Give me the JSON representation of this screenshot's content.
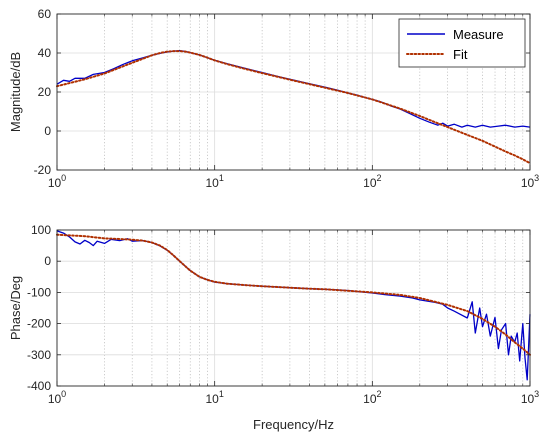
{
  "chart_data": [
    {
      "type": "line",
      "x_scale": "log",
      "xlim": [
        1,
        1000
      ],
      "ylim": [
        -20,
        60
      ],
      "yticks": [
        -20,
        0,
        20,
        40,
        60
      ],
      "xtick_labels": [
        {
          "base": "10",
          "exp": "0"
        },
        {
          "base": "10",
          "exp": "1"
        },
        {
          "base": "10",
          "exp": "2"
        },
        {
          "base": "10",
          "exp": "3"
        }
      ],
      "xlabel": "",
      "ylabel": "Magnitude/dB",
      "grid": true,
      "legend": {
        "placement": "top-right",
        "entries": [
          "Measure",
          "Fit"
        ]
      },
      "series": [
        {
          "name": "Measure",
          "color": "#0000c8",
          "style": "solid",
          "x": [
            1,
            1.1,
            1.2,
            1.3,
            1.5,
            1.7,
            2,
            2.3,
            2.6,
            3,
            3.5,
            4,
            4.5,
            5,
            5.5,
            6,
            6.5,
            7,
            8,
            9,
            10,
            12,
            15,
            20,
            25,
            30,
            40,
            50,
            60,
            70,
            80,
            90,
            100,
            110,
            120,
            130,
            150,
            170,
            200,
            230,
            260,
            280,
            300,
            330,
            370,
            400,
            450,
            500,
            560,
            630,
            700,
            800,
            900,
            1000
          ],
          "y": [
            24,
            26,
            25.5,
            27,
            27,
            29,
            30,
            32,
            34,
            36,
            37.5,
            38.8,
            39.8,
            40.5,
            41,
            41.2,
            40.8,
            40.2,
            39,
            37.6,
            36.3,
            34.5,
            32.5,
            30,
            28,
            26.5,
            24.2,
            22.5,
            21,
            19.5,
            18.4,
            17.2,
            16.2,
            15.3,
            14.2,
            13,
            11.3,
            9.2,
            6.5,
            4.5,
            3,
            4,
            2.5,
            3.5,
            2,
            3,
            2,
            3,
            2,
            2.5,
            3,
            2,
            2.5,
            2
          ]
        },
        {
          "name": "Fit",
          "color": "#b03000",
          "style": "dotted",
          "x": [
            1,
            1.5,
            2,
            2.5,
            3,
            3.5,
            4,
            4.5,
            5,
            5.5,
            6,
            6.5,
            7,
            8,
            9,
            10,
            12,
            15,
            20,
            30,
            40,
            50,
            70,
            100,
            150,
            200,
            250,
            300,
            400,
            500,
            600,
            700,
            800,
            900,
            1000
          ],
          "y": [
            23,
            26.5,
            29.5,
            32.5,
            35,
            37,
            38.8,
            40,
            40.7,
            41,
            41,
            40.7,
            40.2,
            39,
            37.6,
            36.2,
            34.3,
            32.2,
            29.7,
            26.3,
            24,
            22.2,
            19.5,
            16.2,
            11.5,
            7.7,
            4.5,
            2,
            -2,
            -5,
            -8,
            -10.5,
            -12.5,
            -14.5,
            -16.5
          ]
        }
      ]
    },
    {
      "type": "line",
      "x_scale": "log",
      "xlim": [
        1,
        1000
      ],
      "ylim": [
        -400,
        100
      ],
      "yticks": [
        -400,
        -300,
        -200,
        -100,
        0,
        100
      ],
      "xtick_labels": [
        {
          "base": "10",
          "exp": "0"
        },
        {
          "base": "10",
          "exp": "1"
        },
        {
          "base": "10",
          "exp": "2"
        },
        {
          "base": "10",
          "exp": "3"
        }
      ],
      "xlabel": "Frequency/Hz",
      "ylabel": "Phase/Deg",
      "grid": true,
      "series": [
        {
          "name": "Measure",
          "color": "#0000c8",
          "style": "solid",
          "x": [
            1,
            1.1,
            1.2,
            1.3,
            1.4,
            1.5,
            1.6,
            1.7,
            1.8,
            2,
            2.2,
            2.5,
            2.8,
            3,
            3.5,
            4,
            4.5,
            5,
            5.5,
            6,
            7,
            8,
            9,
            10,
            12,
            15,
            20,
            30,
            40,
            50,
            60,
            70,
            80,
            100,
            120,
            150,
            180,
            200,
            250,
            280,
            300,
            330,
            360,
            400,
            430,
            450,
            480,
            500,
            530,
            560,
            600,
            630,
            660,
            700,
            730,
            760,
            800,
            830,
            860,
            900,
            930,
            960,
            1000
          ],
          "y": [
            97,
            90,
            78,
            62,
            55,
            67,
            60,
            50,
            64,
            57,
            70,
            66,
            72,
            64,
            66,
            60,
            49,
            35,
            18,
            0,
            -30,
            -50,
            -60,
            -67,
            -72,
            -76,
            -80,
            -85,
            -88,
            -90,
            -92,
            -94,
            -97,
            -102,
            -107,
            -112,
            -118,
            -124,
            -132,
            -138,
            -150,
            -160,
            -170,
            -182,
            -130,
            -230,
            -150,
            -210,
            -170,
            -240,
            -180,
            -280,
            -220,
            -200,
            -300,
            -240,
            -260,
            -230,
            -320,
            -200,
            -310,
            -380,
            -170
          ]
        },
        {
          "name": "Fit",
          "color": "#b03000",
          "style": "dotted",
          "x": [
            1,
            1.5,
            2,
            2.5,
            3,
            3.5,
            4,
            4.5,
            5,
            5.5,
            6,
            7,
            8,
            9,
            10,
            12,
            15,
            20,
            30,
            40,
            50,
            70,
            100,
            150,
            200,
            300,
            400,
            500,
            600,
            700,
            800,
            900,
            1000
          ],
          "y": [
            85,
            80,
            73,
            71,
            69,
            66,
            60,
            50,
            36,
            18,
            0,
            -30,
            -50,
            -60,
            -66,
            -72,
            -76,
            -80,
            -85,
            -88,
            -90,
            -95,
            -100,
            -108,
            -118,
            -140,
            -160,
            -185,
            -210,
            -235,
            -260,
            -280,
            -300
          ]
        }
      ]
    }
  ]
}
